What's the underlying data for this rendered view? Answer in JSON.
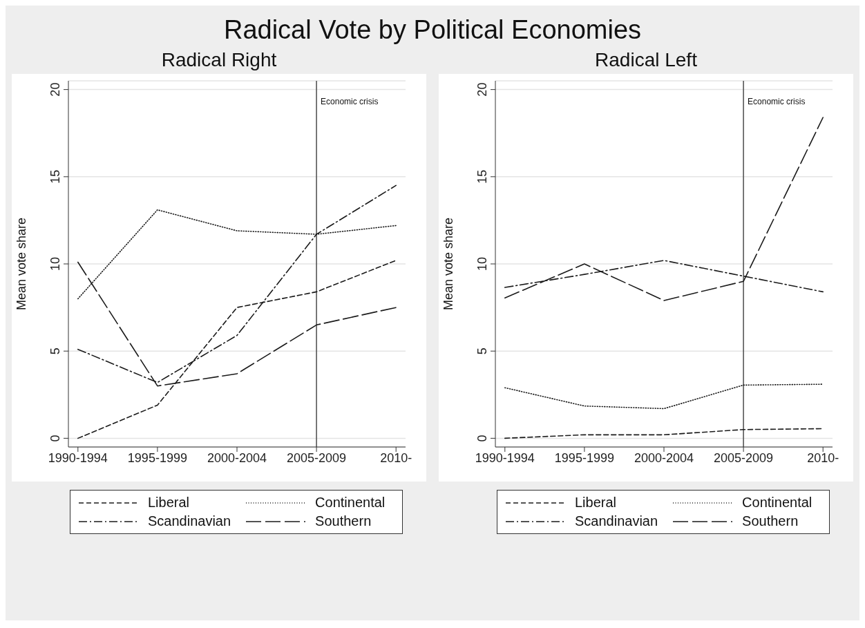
{
  "chart_data": [
    {
      "type": "line",
      "title": "Radical Right",
      "annotations": [
        "Radical Vote by Political Economies"
      ],
      "ylabel": "Mean vote share",
      "categories": [
        "1990-1994",
        "1995-1999",
        "2000-2004",
        "2005-2009",
        "2010-"
      ],
      "ylim": [
        -0.5,
        20.5
      ],
      "yticks": [
        0,
        5,
        10,
        15,
        20
      ],
      "grid": "y",
      "legend": "bottom",
      "marker": "none",
      "ref_lines": [
        {
          "axis": "x",
          "value": "2005-2009",
          "label": "Economic crisis",
          "color": "#555555"
        }
      ],
      "series": [
        {
          "name": "Liberal",
          "color": "#1a1a1a",
          "line_style": "dashed",
          "values": [
            0,
            1.9,
            7.5,
            8.4,
            10.2
          ]
        },
        {
          "name": "Continental",
          "color": "#1a1a1a",
          "line_style": "dotted",
          "values": [
            8.0,
            13.1,
            11.9,
            11.7,
            12.2
          ]
        },
        {
          "name": "Scandinavian",
          "color": "#1a1a1a",
          "line_style": "dashdot",
          "values": [
            5.1,
            3.2,
            5.9,
            11.7,
            14.5
          ]
        },
        {
          "name": "Southern",
          "color": "#1a1a1a",
          "line_style": "longdash",
          "values": [
            10.1,
            3.0,
            3.7,
            6.5,
            7.5
          ]
        }
      ]
    },
    {
      "type": "line",
      "title": "Radical Left",
      "ylabel": "Mean vote share",
      "categories": [
        "1990-1994",
        "1995-1999",
        "2000-2004",
        "2005-2009",
        "2010-"
      ],
      "ylim": [
        -0.5,
        20.5
      ],
      "yticks": [
        0,
        5,
        10,
        15,
        20
      ],
      "grid": "y",
      "legend": "bottom",
      "marker": "none",
      "ref_lines": [
        {
          "axis": "x",
          "value": "2005-2009",
          "label": "Economic crisis",
          "color": "#555555"
        }
      ],
      "series": [
        {
          "name": "Liberal",
          "color": "#1a1a1a",
          "line_style": "dashed",
          "values": [
            0,
            0.2,
            0.2,
            0.5,
            0.55
          ]
        },
        {
          "name": "Continental",
          "color": "#1a1a1a",
          "line_style": "dotted",
          "values": [
            2.9,
            1.85,
            1.7,
            3.05,
            3.1
          ]
        },
        {
          "name": "Scandinavian",
          "color": "#1a1a1a",
          "line_style": "dashdot",
          "values": [
            8.65,
            9.4,
            10.2,
            9.3,
            8.4
          ]
        },
        {
          "name": "Southern",
          "color": "#1a1a1a",
          "line_style": "longdash",
          "values": [
            8.05,
            10.0,
            7.9,
            9.0,
            18.4
          ]
        }
      ]
    }
  ]
}
